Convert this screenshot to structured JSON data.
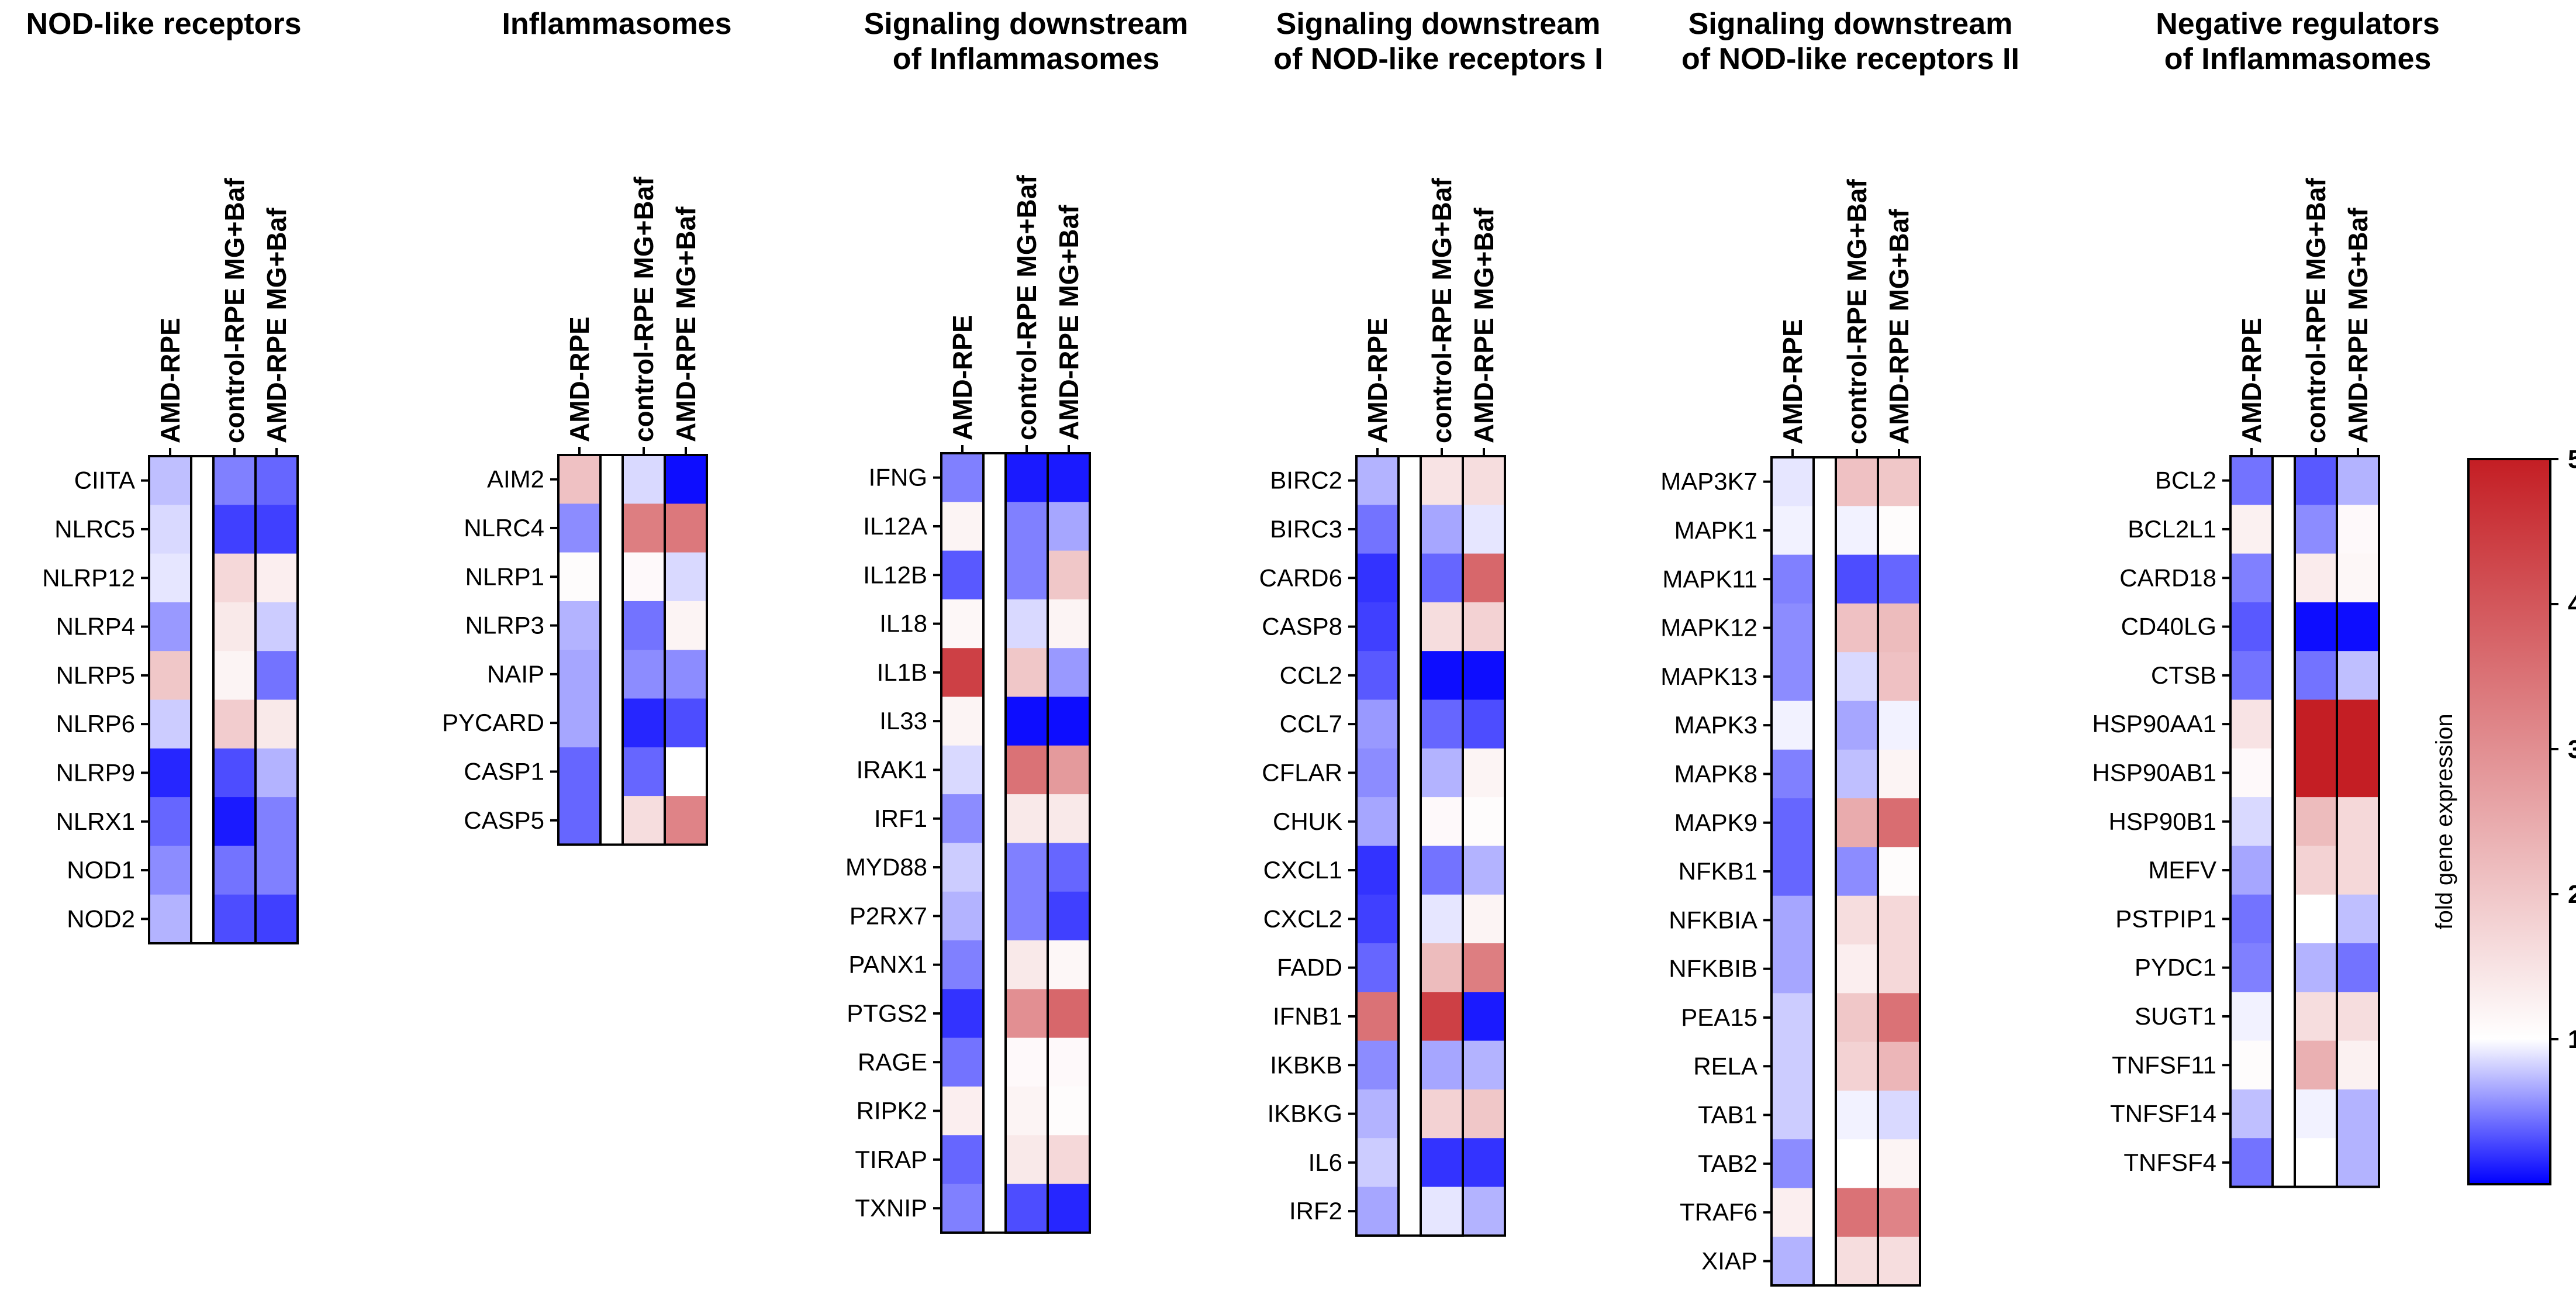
{
  "chart_data": [
    {
      "type": "heatmap",
      "title": "NOD-like receptors",
      "columns": [
        "AMD-RPE",
        "control-RPE MG+Baf",
        "AMD-RPE MG+Baf"
      ],
      "rows": [
        "CIITA",
        "NLRC5",
        "NLRP12",
        "NLRP4",
        "NLRP5",
        "NLRP6",
        "NLRP9",
        "NLRX1",
        "NOD1",
        "NOD2"
      ],
      "values": [
        [
          0.75,
          0.5,
          0.4
        ],
        [
          0.85,
          0.25,
          0.25
        ],
        [
          0.9,
          1.7,
          1.3
        ],
        [
          0.6,
          1.4,
          0.8
        ],
        [
          2.0,
          1.2,
          0.45
        ],
        [
          0.8,
          1.9,
          1.4
        ],
        [
          0.15,
          0.3,
          0.7
        ],
        [
          0.4,
          0.1,
          0.5
        ],
        [
          0.55,
          0.45,
          0.5
        ],
        [
          0.7,
          0.3,
          0.25
        ]
      ]
    },
    {
      "type": "heatmap",
      "title": "Inflammasomes",
      "columns": [
        "AMD-RPE",
        "control-RPE MG+Baf",
        "AMD-RPE MG+Baf"
      ],
      "rows": [
        "AIM2",
        "NLRC4",
        "NLRP1",
        "NLRP3",
        "NAIP",
        "PYCARD",
        "CASP1",
        "CASP5"
      ],
      "values": [
        [
          2.1,
          0.85,
          0.05
        ],
        [
          0.55,
          3.3,
          3.4
        ],
        [
          1.05,
          1.1,
          0.85
        ],
        [
          0.7,
          0.45,
          1.2
        ],
        [
          0.65,
          0.55,
          0.55
        ],
        [
          0.65,
          0.15,
          0.3
        ],
        [
          0.4,
          0.4,
          1.0
        ],
        [
          0.4,
          1.6,
          3.2
        ]
      ]
    },
    {
      "type": "heatmap",
      "title": "Signaling downstream of Inflammasomes",
      "title_lines": [
        "Signaling downstream",
        "of Inflammasomes"
      ],
      "columns": [
        "AMD-RPE",
        "control-RPE MG+Baf",
        "AMD-RPE MG+Baf"
      ],
      "rows": [
        "IFNG",
        "IL12A",
        "IL12B",
        "IL18",
        "IL1B",
        "IL33",
        "IRAK1",
        "IRF1",
        "MYD88",
        "P2RX7",
        "PANX1",
        "PTGS2",
        "RAGE",
        "RIPK2",
        "TIRAP",
        "TXNIP"
      ],
      "values": [
        [
          0.5,
          0.1,
          0.1
        ],
        [
          1.2,
          0.5,
          0.65
        ],
        [
          0.35,
          0.5,
          2.0
        ],
        [
          1.15,
          0.85,
          1.2
        ],
        [
          4.4,
          2.0,
          0.6
        ],
        [
          1.2,
          0.05,
          0.05
        ],
        [
          0.85,
          3.5,
          2.8
        ],
        [
          0.55,
          1.4,
          1.4
        ],
        [
          0.8,
          0.5,
          0.4
        ],
        [
          0.7,
          0.5,
          0.25
        ],
        [
          0.5,
          1.4,
          1.15
        ],
        [
          0.2,
          3.0,
          3.7
        ],
        [
          0.45,
          1.1,
          1.1
        ],
        [
          1.3,
          1.2,
          1.05
        ],
        [
          0.4,
          1.4,
          1.7
        ],
        [
          0.5,
          0.3,
          0.15
        ]
      ]
    },
    {
      "type": "heatmap",
      "title": "Signaling downstream of NOD-like receptors I",
      "title_lines": [
        "Signaling downstream",
        "of NOD-like receptors I"
      ],
      "columns": [
        "AMD-RPE",
        "control-RPE MG+Baf",
        "AMD-RPE MG+Baf"
      ],
      "rows": [
        "BIRC2",
        "BIRC3",
        "CARD6",
        "CASP8",
        "CCL2",
        "CCL7",
        "CFLAR",
        "CHUK",
        "CXCL1",
        "CXCL2",
        "FADD",
        "IFNB1",
        "IKBKB",
        "IKBKG",
        "IL6",
        "IRF2"
      ],
      "values": [
        [
          0.7,
          1.5,
          1.6
        ],
        [
          0.45,
          0.65,
          0.9
        ],
        [
          0.2,
          0.4,
          3.7
        ],
        [
          0.25,
          1.6,
          1.8
        ],
        [
          0.35,
          0.05,
          0.05
        ],
        [
          0.6,
          0.4,
          0.3
        ],
        [
          0.55,
          0.7,
          1.2
        ],
        [
          0.65,
          1.1,
          1.05
        ],
        [
          0.2,
          0.45,
          0.7
        ],
        [
          0.25,
          0.9,
          1.2
        ],
        [
          0.4,
          2.2,
          3.3
        ],
        [
          3.5,
          4.4,
          0.1
        ],
        [
          0.55,
          0.65,
          0.7
        ],
        [
          0.7,
          1.8,
          2.0
        ],
        [
          0.8,
          0.2,
          0.2
        ],
        [
          0.65,
          0.9,
          0.7
        ]
      ]
    },
    {
      "type": "heatmap",
      "title": "Signaling downstream of NOD-like receptors II",
      "title_lines": [
        "Signaling downstream",
        "of NOD-like receptors II"
      ],
      "columns": [
        "AMD-RPE",
        "control-RPE MG+Baf",
        "AMD-RPE MG+Baf"
      ],
      "rows": [
        "MAP3K7",
        "MAPK1",
        "MAPK11",
        "MAPK12",
        "MAPK13",
        "MAPK3",
        "MAPK8",
        "MAPK9",
        "NFKB1",
        "NFKBIA",
        "NFKBIB",
        "PEA15",
        "RELA",
        "TAB1",
        "TAB2",
        "TRAF6",
        "XIAP"
      ],
      "values": [
        [
          0.9,
          2.1,
          2.0
        ],
        [
          0.95,
          0.95,
          1.05
        ],
        [
          0.5,
          0.3,
          0.4
        ],
        [
          0.55,
          2.1,
          2.2
        ],
        [
          0.55,
          0.85,
          2.1
        ],
        [
          0.95,
          0.65,
          0.95
        ],
        [
          0.5,
          0.75,
          1.2
        ],
        [
          0.4,
          2.5,
          3.6
        ],
        [
          0.4,
          0.55,
          1.05
        ],
        [
          0.65,
          1.6,
          1.7
        ],
        [
          0.65,
          1.3,
          1.7
        ],
        [
          0.8,
          2.0,
          3.5
        ],
        [
          0.8,
          1.8,
          2.3
        ],
        [
          0.8,
          0.95,
          0.85
        ],
        [
          0.55,
          1.0,
          1.2
        ],
        [
          1.3,
          3.5,
          3.2
        ],
        [
          0.7,
          1.6,
          1.6
        ]
      ]
    },
    {
      "type": "heatmap",
      "title": "Negative regulators of Inflammasomes",
      "title_lines": [
        "Negative regulators",
        "of Inflammasomes"
      ],
      "columns": [
        "AMD-RPE",
        "control-RPE MG+Baf",
        "AMD-RPE MG+Baf"
      ],
      "rows": [
        "BCL2",
        "BCL2L1",
        "CARD18",
        "CD40LG",
        "CTSB",
        "HSP90AA1",
        "HSP90AB1",
        "HSP90B1",
        "MEFV",
        "PSTPIP1",
        "PYDC1",
        "SUGT1",
        "TNFSF11",
        "TNFSF14",
        "TNFSF4"
      ],
      "values": [
        [
          0.45,
          0.35,
          0.7
        ],
        [
          1.25,
          0.55,
          1.1
        ],
        [
          0.5,
          1.35,
          1.15
        ],
        [
          0.35,
          0.05,
          0.05
        ],
        [
          0.45,
          0.45,
          0.75
        ],
        [
          1.5,
          5.0,
          5.0
        ],
        [
          1.1,
          5.0,
          5.0
        ],
        [
          0.85,
          2.2,
          1.7
        ],
        [
          0.65,
          1.8,
          1.7
        ],
        [
          0.45,
          1.0,
          0.75
        ],
        [
          0.5,
          0.7,
          0.45
        ],
        [
          0.95,
          1.6,
          1.6
        ],
        [
          1.05,
          2.4,
          1.25
        ],
        [
          0.75,
          0.95,
          0.7
        ],
        [
          0.45,
          1.0,
          0.7
        ]
      ]
    }
  ],
  "colorbar": {
    "title": "fold gene expression",
    "min": 0,
    "max": 5,
    "ticks": [
      "1",
      "2",
      "3",
      "4",
      "5"
    ],
    "tick_values": [
      1,
      2,
      3,
      4,
      5
    ],
    "colors": {
      "low": "#0000ff",
      "mid": "#ffffff",
      "high": "#c41e24",
      "mid_value": 1
    }
  }
}
